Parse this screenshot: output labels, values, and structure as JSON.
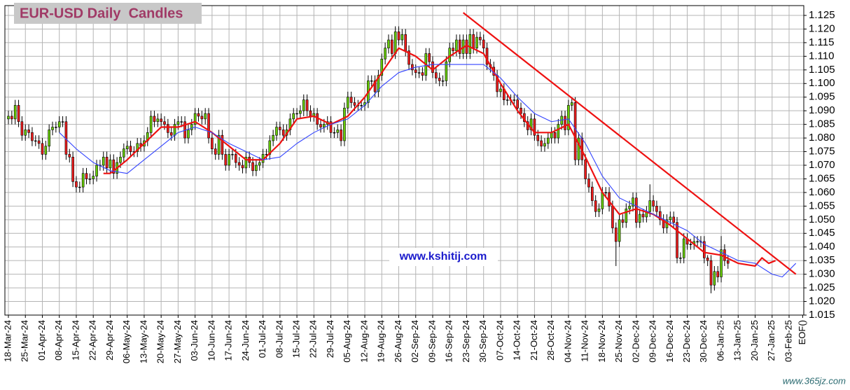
{
  "chart_data": {
    "type": "candlestick",
    "title": "EUR-USD Daily  Candles",
    "annotation": "www.kshitij.com",
    "watermark": "www.365jz.com",
    "categories": [
      "18-Mar-24",
      null,
      null,
      null,
      null,
      "25-Mar-24",
      null,
      null,
      null,
      null,
      "01-Apr-24",
      null,
      null,
      null,
      null,
      "08-Apr-24",
      null,
      null,
      null,
      null,
      "15-Apr-24",
      null,
      null,
      null,
      null,
      "22-Apr-24",
      null,
      null,
      null,
      null,
      "29-Apr-24",
      null,
      null,
      null,
      null,
      "06-May-24",
      null,
      null,
      null,
      null,
      "13-May-24",
      null,
      null,
      null,
      null,
      "20-May-24",
      null,
      null,
      null,
      null,
      "27-May-24",
      null,
      null,
      null,
      null,
      "03-Jun-24",
      null,
      null,
      null,
      null,
      "10-Jun-24",
      null,
      null,
      null,
      null,
      "17-Jun-24",
      null,
      null,
      null,
      null,
      "24-Jun-24",
      null,
      null,
      null,
      null,
      "01-Jul-24",
      null,
      null,
      null,
      null,
      "08-Jul-24",
      null,
      null,
      null,
      null,
      "15-Jul-24",
      null,
      null,
      null,
      null,
      "22-Jul-24",
      null,
      null,
      null,
      null,
      "29-Jul-24",
      null,
      null,
      null,
      null,
      "05-Aug-24",
      null,
      null,
      null,
      null,
      "12-Aug-24",
      null,
      null,
      null,
      null,
      "19-Aug-24",
      null,
      null,
      null,
      null,
      "26-Aug-24",
      null,
      null,
      null,
      null,
      "02-Sep-24",
      null,
      null,
      null,
      null,
      "09-Sep-24",
      null,
      null,
      null,
      null,
      "16-Sep-24",
      null,
      null,
      null,
      null,
      "23-Sep-24",
      null,
      null,
      null,
      null,
      "30-Sep-24",
      null,
      null,
      null,
      null,
      "07-Oct-24",
      null,
      null,
      null,
      null,
      "14-Oct-24",
      null,
      null,
      null,
      null,
      "21-Oct-24",
      null,
      null,
      null,
      null,
      "28-Oct-24",
      null,
      null,
      null,
      null,
      "04-Nov-24",
      null,
      null,
      null,
      null,
      "11-Nov-24",
      null,
      null,
      null,
      null,
      "18-Nov-24",
      null,
      null,
      null,
      null,
      "25-Nov-24",
      null,
      null,
      null,
      null,
      "02-Dec-24",
      null,
      null,
      null,
      null,
      "09-Dec-24",
      null,
      null,
      null,
      null,
      "16-Dec-24",
      null,
      null,
      null,
      null,
      "23-Dec-24",
      null,
      null,
      null,
      null,
      "30-Dec-24",
      null,
      null,
      null,
      null,
      "06-Jan-25",
      null,
      null,
      null,
      null,
      "13-Jan-25",
      null,
      null,
      null,
      null,
      "20-Jan-25",
      null,
      null,
      null,
      null,
      "27-Jan-25",
      null,
      null,
      null,
      null,
      "03-Feb-25",
      null,
      null,
      null,
      "EOF()"
    ],
    "open": [
      1.087,
      1.088,
      1.087,
      1.092,
      1.086,
      1.081,
      1.083,
      1.082,
      1.079,
      1.079,
      1.078,
      1.074,
      1.077,
      1.083,
      1.084,
      1.084,
      1.086,
      1.086,
      1.074,
      1.073,
      1.064,
      1.062,
      1.062,
      1.067,
      1.065,
      1.065,
      1.066,
      1.07,
      1.07,
      1.073,
      1.069,
      1.072,
      1.067,
      1.071,
      1.073,
      1.076,
      1.077,
      1.075,
      1.075,
      1.078,
      1.077,
      1.079,
      1.082,
      1.088,
      1.086,
      1.087,
      1.086,
      1.085,
      1.082,
      1.081,
      1.085,
      1.086,
      1.086,
      1.08,
      1.083,
      1.085,
      1.089,
      1.088,
      1.087,
      1.089,
      1.08,
      1.076,
      1.074,
      1.081,
      1.074,
      1.07,
      1.074,
      1.074,
      1.071,
      1.07,
      1.069,
      1.073,
      1.071,
      1.068,
      1.07,
      1.071,
      1.074,
      1.074,
      1.079,
      1.081,
      1.084,
      1.083,
      1.081,
      1.083,
      1.087,
      1.089,
      1.089,
      1.09,
      1.094,
      1.09,
      1.088,
      1.089,
      1.085,
      1.084,
      1.085,
      1.086,
      1.082,
      1.082,
      1.083,
      1.079,
      1.091,
      1.095,
      1.093,
      1.092,
      1.092,
      1.092,
      1.093,
      1.101,
      1.101,
      1.097,
      1.103,
      1.109,
      1.113,
      1.116,
      1.111,
      1.119,
      1.116,
      1.118,
      1.112,
      1.107,
      1.105,
      1.104,
      1.104,
      1.103,
      1.111,
      1.108,
      1.104,
      1.102,
      1.101,
      1.101,
      1.108,
      1.113,
      1.112,
      1.116,
      1.111,
      1.116,
      1.111,
      1.118,
      1.113,
      1.117,
      1.116,
      1.113,
      1.107,
      1.106,
      1.103,
      1.097,
      1.098,
      1.094,
      1.094,
      1.094,
      1.094,
      1.091,
      1.089,
      1.086,
      1.083,
      1.087,
      1.081,
      1.079,
      1.077,
      1.078,
      1.08,
      1.082,
      1.08,
      1.085,
      1.088,
      1.083,
      1.092,
      1.093,
      1.072,
      1.08,
      1.072,
      1.065,
      1.062,
      1.057,
      1.053,
      1.054,
      1.06,
      1.06,
      1.055,
      1.047,
      1.042,
      1.05,
      1.049,
      1.054,
      1.055,
      1.058,
      1.049,
      1.052,
      1.051,
      1.053,
      1.057,
      1.055,
      1.053,
      1.05,
      1.047,
      1.05,
      1.051,
      1.049,
      1.036,
      1.036,
      1.043,
      1.041,
      1.041,
      1.042,
      1.042,
      1.042,
      1.036,
      1.035,
      1.026,
      1.031,
      1.029,
      1.039,
      1.035,
      null,
      null,
      null,
      null,
      null,
      null,
      null,
      null,
      null,
      null,
      null,
      null,
      null,
      null,
      null,
      null,
      null,
      null,
      null,
      null,
      null,
      null
    ],
    "high": [
      1.09,
      1.09,
      1.094,
      1.094,
      1.088,
      1.085,
      1.085,
      1.084,
      1.081,
      1.081,
      1.08,
      1.079,
      1.085,
      1.086,
      1.086,
      1.088,
      1.088,
      1.088,
      1.076,
      1.075,
      1.066,
      1.064,
      1.069,
      1.069,
      1.067,
      1.068,
      1.072,
      1.072,
      1.075,
      1.075,
      1.074,
      1.074,
      1.073,
      1.075,
      1.078,
      1.079,
      1.079,
      1.077,
      1.08,
      1.08,
      1.081,
      1.084,
      1.09,
      1.09,
      1.089,
      1.089,
      1.088,
      1.087,
      1.084,
      1.087,
      1.088,
      1.088,
      1.088,
      1.085,
      1.087,
      1.091,
      1.091,
      1.09,
      1.091,
      1.091,
      1.082,
      1.078,
      1.083,
      1.083,
      1.076,
      1.076,
      1.076,
      1.076,
      1.073,
      1.072,
      1.075,
      1.075,
      1.073,
      1.072,
      1.073,
      1.076,
      1.076,
      1.081,
      1.083,
      1.086,
      1.086,
      1.085,
      1.085,
      1.089,
      1.091,
      1.091,
      1.092,
      1.096,
      1.096,
      1.092,
      1.091,
      1.091,
      1.087,
      1.087,
      1.088,
      1.088,
      1.084,
      1.085,
      1.085,
      1.093,
      1.097,
      1.097,
      1.095,
      1.094,
      1.094,
      1.095,
      1.103,
      1.103,
      1.103,
      1.105,
      1.111,
      1.115,
      1.118,
      1.118,
      1.121,
      1.121,
      1.12,
      1.12,
      1.114,
      1.109,
      1.107,
      1.106,
      1.106,
      1.113,
      1.113,
      1.11,
      1.106,
      1.104,
      1.103,
      1.11,
      1.115,
      1.115,
      1.118,
      1.118,
      1.118,
      1.118,
      1.12,
      1.12,
      1.119,
      1.119,
      1.118,
      1.115,
      1.109,
      1.108,
      1.105,
      1.1,
      1.1,
      1.096,
      1.096,
      1.096,
      1.096,
      1.093,
      1.091,
      1.088,
      1.089,
      1.089,
      1.083,
      1.081,
      1.08,
      1.082,
      1.084,
      1.084,
      1.087,
      1.09,
      1.09,
      1.094,
      1.095,
      1.095,
      1.082,
      1.082,
      1.074,
      1.067,
      1.064,
      1.059,
      1.056,
      1.062,
      1.062,
      1.062,
      1.057,
      1.049,
      1.052,
      1.052,
      1.056,
      1.057,
      1.06,
      1.06,
      1.054,
      1.054,
      1.055,
      1.063,
      1.059,
      1.057,
      1.055,
      1.052,
      1.052,
      1.053,
      1.053,
      1.051,
      1.038,
      1.045,
      1.045,
      1.043,
      1.044,
      1.044,
      1.044,
      1.044,
      1.037,
      1.037,
      1.033,
      1.033,
      1.044,
      1.041,
      1.037,
      null,
      null,
      null,
      null,
      null,
      null,
      null,
      null,
      null,
      null,
      null,
      null,
      null,
      null,
      null,
      null,
      null,
      null,
      null,
      null,
      null,
      null
    ],
    "low": [
      1.085,
      1.085,
      1.085,
      1.084,
      1.079,
      1.079,
      1.08,
      1.077,
      1.077,
      1.076,
      1.072,
      1.072,
      1.075,
      1.081,
      1.082,
      1.082,
      1.084,
      1.072,
      1.071,
      1.062,
      1.06,
      1.06,
      1.06,
      1.063,
      1.063,
      1.063,
      1.064,
      1.068,
      1.068,
      1.067,
      1.067,
      1.065,
      1.065,
      1.069,
      1.071,
      1.074,
      1.073,
      1.073,
      1.073,
      1.075,
      1.075,
      1.077,
      1.08,
      1.084,
      1.084,
      1.084,
      1.083,
      1.08,
      1.079,
      1.079,
      1.083,
      1.084,
      1.078,
      1.078,
      1.081,
      1.083,
      1.086,
      1.085,
      1.085,
      1.078,
      1.074,
      1.072,
      1.072,
      1.072,
      1.068,
      1.068,
      1.072,
      1.069,
      1.068,
      1.067,
      1.067,
      1.069,
      1.066,
      1.066,
      1.068,
      1.069,
      1.072,
      1.072,
      1.077,
      1.079,
      1.081,
      1.079,
      1.079,
      1.081,
      1.085,
      1.087,
      1.087,
      1.088,
      1.088,
      1.086,
      1.086,
      1.083,
      1.082,
      1.082,
      1.083,
      1.08,
      1.08,
      1.08,
      1.077,
      1.077,
      1.089,
      1.091,
      1.09,
      1.09,
      1.09,
      1.09,
      1.091,
      1.099,
      1.095,
      1.095,
      1.101,
      1.107,
      1.111,
      1.109,
      1.109,
      1.114,
      1.114,
      1.11,
      1.105,
      1.103,
      1.102,
      1.102,
      1.101,
      1.101,
      1.106,
      1.102,
      1.1,
      1.099,
      1.099,
      1.099,
      1.106,
      1.11,
      1.11,
      1.109,
      1.109,
      1.109,
      1.109,
      1.111,
      1.111,
      1.114,
      1.111,
      1.105,
      1.104,
      1.101,
      1.095,
      1.095,
      1.092,
      1.092,
      1.092,
      1.092,
      1.089,
      1.087,
      1.084,
      1.081,
      1.081,
      1.079,
      1.077,
      1.075,
      1.075,
      1.076,
      1.078,
      1.078,
      1.078,
      1.083,
      1.081,
      1.081,
      1.09,
      1.07,
      1.07,
      1.07,
      1.063,
      1.06,
      1.055,
      1.051,
      1.051,
      1.052,
      1.058,
      1.053,
      1.045,
      1.033,
      1.04,
      1.047,
      1.047,
      1.052,
      1.053,
      1.047,
      1.047,
      1.049,
      1.049,
      1.051,
      1.053,
      1.051,
      1.048,
      1.045,
      1.045,
      1.048,
      1.047,
      1.034,
      1.034,
      1.034,
      1.039,
      1.039,
      1.039,
      1.04,
      1.04,
      1.034,
      1.033,
      1.023,
      1.024,
      1.027,
      1.027,
      1.033,
      1.032,
      null,
      null,
      null,
      null,
      null,
      null,
      null,
      null,
      null,
      null,
      null,
      null,
      null,
      null,
      null,
      null,
      null,
      null,
      null,
      null,
      null,
      null
    ],
    "close": [
      1.088,
      1.087,
      1.092,
      1.086,
      1.081,
      1.083,
      1.082,
      1.079,
      1.079,
      1.078,
      1.074,
      1.077,
      1.083,
      1.084,
      1.084,
      1.086,
      1.086,
      1.074,
      1.073,
      1.064,
      1.062,
      1.062,
      1.067,
      1.065,
      1.065,
      1.066,
      1.07,
      1.07,
      1.073,
      1.069,
      1.072,
      1.067,
      1.071,
      1.073,
      1.076,
      1.077,
      1.075,
      1.075,
      1.078,
      1.077,
      1.079,
      1.082,
      1.088,
      1.086,
      1.087,
      1.086,
      1.085,
      1.082,
      1.081,
      1.085,
      1.086,
      1.086,
      1.08,
      1.083,
      1.085,
      1.089,
      1.088,
      1.087,
      1.089,
      1.08,
      1.076,
      1.074,
      1.081,
      1.074,
      1.07,
      1.074,
      1.074,
      1.071,
      1.07,
      1.069,
      1.073,
      1.071,
      1.068,
      1.07,
      1.071,
      1.074,
      1.074,
      1.079,
      1.081,
      1.084,
      1.083,
      1.081,
      1.083,
      1.087,
      1.089,
      1.089,
      1.09,
      1.094,
      1.09,
      1.088,
      1.089,
      1.085,
      1.084,
      1.085,
      1.086,
      1.082,
      1.082,
      1.083,
      1.079,
      1.091,
      1.095,
      1.093,
      1.092,
      1.092,
      1.092,
      1.093,
      1.101,
      1.101,
      1.097,
      1.103,
      1.109,
      1.113,
      1.116,
      1.111,
      1.119,
      1.116,
      1.118,
      1.112,
      1.107,
      1.105,
      1.104,
      1.104,
      1.103,
      1.111,
      1.108,
      1.104,
      1.102,
      1.101,
      1.101,
      1.108,
      1.113,
      1.112,
      1.116,
      1.111,
      1.116,
      1.111,
      1.118,
      1.113,
      1.117,
      1.116,
      1.113,
      1.107,
      1.106,
      1.103,
      1.097,
      1.098,
      1.094,
      1.094,
      1.094,
      1.094,
      1.091,
      1.089,
      1.086,
      1.083,
      1.087,
      1.081,
      1.079,
      1.077,
      1.078,
      1.08,
      1.082,
      1.08,
      1.085,
      1.088,
      1.083,
      1.092,
      1.093,
      1.072,
      1.08,
      1.072,
      1.065,
      1.062,
      1.057,
      1.053,
      1.054,
      1.06,
      1.06,
      1.055,
      1.047,
      1.042,
      1.05,
      1.049,
      1.054,
      1.055,
      1.058,
      1.049,
      1.052,
      1.051,
      1.053,
      1.057,
      1.055,
      1.053,
      1.05,
      1.047,
      1.05,
      1.051,
      1.049,
      1.036,
      1.036,
      1.043,
      1.041,
      1.041,
      1.042,
      1.042,
      1.042,
      1.036,
      1.035,
      1.026,
      1.031,
      1.029,
      1.039,
      1.035,
      1.034,
      null,
      null,
      null,
      null,
      null,
      null,
      null,
      null,
      null,
      null,
      null,
      null,
      null,
      null,
      null,
      null,
      null,
      null,
      null,
      null,
      null,
      null
    ],
    "up_color": "#66cc00",
    "down_color": "#ee1c1c",
    "series": [
      {
        "color": "#ee1111",
        "x": [
          28,
          30,
          35,
          40,
          45,
          50,
          55,
          60,
          65,
          70,
          75,
          80,
          85,
          90,
          95,
          100,
          105,
          110,
          115,
          120,
          125,
          130,
          135,
          140,
          145,
          150,
          155,
          160,
          165,
          170,
          175,
          180,
          185,
          190,
          195,
          200,
          205,
          210,
          215,
          220,
          222,
          224,
          226
        ],
        "values": [
          1.067,
          1.067,
          1.072,
          1.078,
          1.084,
          1.084,
          1.086,
          1.082,
          1.077,
          1.072,
          1.072,
          1.078,
          1.087,
          1.088,
          1.085,
          1.088,
          1.095,
          1.104,
          1.113,
          1.11,
          1.105,
          1.11,
          1.114,
          1.111,
          1.1,
          1.09,
          1.082,
          1.082,
          1.085,
          1.073,
          1.06,
          1.052,
          1.054,
          1.052,
          1.048,
          1.043,
          1.038,
          1.037,
          1.034,
          1.033,
          1.036,
          1.034,
          1.035
        ]
      },
      {
        "color": "#3344ff",
        "x": [
          15,
          20,
          25,
          30,
          35,
          40,
          45,
          50,
          55,
          60,
          65,
          70,
          75,
          80,
          85,
          90,
          95,
          100,
          105,
          110,
          115,
          120,
          125,
          130,
          135,
          140,
          145,
          150,
          155,
          160,
          165,
          170,
          175,
          180,
          185,
          190,
          195,
          200,
          205,
          210,
          215,
          220,
          225,
          228,
          232
        ],
        "values": [
          1.082,
          1.076,
          1.071,
          1.068,
          1.067,
          1.072,
          1.077,
          1.082,
          1.084,
          1.082,
          1.078,
          1.075,
          1.072,
          1.073,
          1.078,
          1.082,
          1.085,
          1.087,
          1.092,
          1.099,
          1.104,
          1.106,
          1.107,
          1.107,
          1.107,
          1.107,
          1.102,
          1.095,
          1.089,
          1.086,
          1.087,
          1.078,
          1.066,
          1.058,
          1.055,
          1.052,
          1.049,
          1.046,
          1.041,
          1.038,
          1.035,
          1.034,
          1.03,
          1.029,
          1.034
        ]
      }
    ],
    "trendline": {
      "color": "#ee1111",
      "x": [
        134,
        232
      ],
      "values": [
        1.126,
        1.03
      ]
    },
    "ylim": [
      1.015,
      1.1286
    ],
    "yticks": [
      1.015,
      {
        "value": 1.02,
        "label": "1.020"
      },
      1.025,
      {
        "value": 1.03,
        "label": "1.030"
      },
      1.035,
      {
        "value": 1.04,
        "label": "1.040"
      },
      1.045,
      {
        "value": 1.05,
        "label": "1.050"
      },
      1.055,
      {
        "value": 1.06,
        "label": "1.060"
      },
      1.065,
      {
        "value": 1.07,
        "label": "1.070"
      },
      1.075,
      {
        "value": 1.08,
        "label": "1.080"
      },
      1.085,
      {
        "value": 1.09,
        "label": "1.090"
      },
      1.095,
      {
        "value": 1.1,
        "label": "1.100"
      },
      1.105,
      {
        "value": 1.11,
        "label": "1.110"
      },
      1.115,
      {
        "value": 1.12,
        "label": "1.120"
      },
      1.125
    ],
    "grid": true
  }
}
